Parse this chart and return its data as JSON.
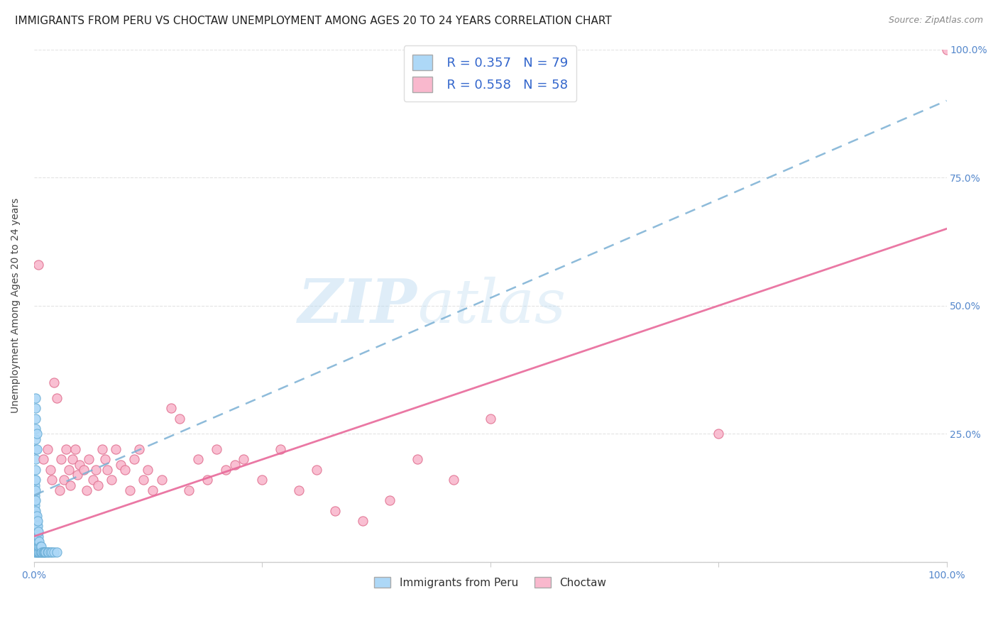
{
  "title": "IMMIGRANTS FROM PERU VS CHOCTAW UNEMPLOYMENT AMONG AGES 20 TO 24 YEARS CORRELATION CHART",
  "source": "Source: ZipAtlas.com",
  "ylabel": "Unemployment Among Ages 20 to 24 years",
  "xlim": [
    0.0,
    1.0
  ],
  "ylim": [
    0.0,
    1.0
  ],
  "background_color": "#ffffff",
  "watermark_text": "ZIP",
  "watermark_text2": "atlas",
  "legend_r1": "R = 0.357",
  "legend_n1": "N = 79",
  "legend_r2": "R = 0.558",
  "legend_n2": "N = 58",
  "series1_color": "#add8f7",
  "series1_edge": "#6aaed6",
  "series2_color": "#f9b8cd",
  "series2_edge": "#e07090",
  "trendline1_color": "#7ab0d4",
  "trendline2_color": "#e8699a",
  "grid_color": "#e0e0e0",
  "title_fontsize": 11,
  "axis_label_fontsize": 10,
  "tick_fontsize": 10,
  "tick_color": "#5588cc",
  "peru_x": [
    0.001,
    0.001,
    0.001,
    0.001,
    0.001,
    0.001,
    0.001,
    0.001,
    0.001,
    0.001,
    0.001,
    0.001,
    0.001,
    0.001,
    0.001,
    0.001,
    0.001,
    0.001,
    0.001,
    0.002,
    0.002,
    0.002,
    0.002,
    0.002,
    0.002,
    0.002,
    0.002,
    0.002,
    0.002,
    0.002,
    0.002,
    0.002,
    0.002,
    0.002,
    0.002,
    0.002,
    0.002,
    0.002,
    0.002,
    0.003,
    0.003,
    0.003,
    0.003,
    0.003,
    0.003,
    0.003,
    0.003,
    0.003,
    0.003,
    0.004,
    0.004,
    0.004,
    0.004,
    0.004,
    0.004,
    0.004,
    0.005,
    0.005,
    0.005,
    0.005,
    0.005,
    0.006,
    0.006,
    0.006,
    0.007,
    0.007,
    0.008,
    0.008,
    0.009,
    0.01,
    0.011,
    0.012,
    0.013,
    0.015,
    0.016,
    0.018,
    0.02,
    0.022,
    0.025
  ],
  "peru_y": [
    0.02,
    0.03,
    0.04,
    0.05,
    0.06,
    0.07,
    0.08,
    0.09,
    0.1,
    0.11,
    0.12,
    0.13,
    0.14,
    0.15,
    0.16,
    0.03,
    0.05,
    0.07,
    0.09,
    0.02,
    0.03,
    0.04,
    0.05,
    0.06,
    0.07,
    0.08,
    0.09,
    0.1,
    0.2,
    0.22,
    0.24,
    0.26,
    0.28,
    0.3,
    0.32,
    0.12,
    0.14,
    0.16,
    0.18,
    0.02,
    0.03,
    0.04,
    0.05,
    0.06,
    0.07,
    0.08,
    0.09,
    0.22,
    0.25,
    0.02,
    0.03,
    0.04,
    0.05,
    0.06,
    0.07,
    0.08,
    0.02,
    0.03,
    0.04,
    0.05,
    0.06,
    0.02,
    0.03,
    0.04,
    0.02,
    0.03,
    0.02,
    0.03,
    0.02,
    0.02,
    0.02,
    0.02,
    0.02,
    0.02,
    0.02,
    0.02,
    0.02,
    0.02,
    0.02
  ],
  "choctaw_x": [
    0.005,
    0.01,
    0.015,
    0.018,
    0.02,
    0.022,
    0.025,
    0.028,
    0.03,
    0.033,
    0.035,
    0.038,
    0.04,
    0.042,
    0.045,
    0.048,
    0.05,
    0.055,
    0.058,
    0.06,
    0.065,
    0.068,
    0.07,
    0.075,
    0.078,
    0.08,
    0.085,
    0.09,
    0.095,
    0.1,
    0.105,
    0.11,
    0.115,
    0.12,
    0.125,
    0.13,
    0.14,
    0.15,
    0.16,
    0.17,
    0.18,
    0.19,
    0.2,
    0.21,
    0.22,
    0.23,
    0.25,
    0.27,
    0.29,
    0.31,
    0.33,
    0.36,
    0.39,
    0.42,
    0.46,
    0.5,
    0.75,
    1.0
  ],
  "choctaw_y": [
    0.58,
    0.2,
    0.22,
    0.18,
    0.16,
    0.35,
    0.32,
    0.14,
    0.2,
    0.16,
    0.22,
    0.18,
    0.15,
    0.2,
    0.22,
    0.17,
    0.19,
    0.18,
    0.14,
    0.2,
    0.16,
    0.18,
    0.15,
    0.22,
    0.2,
    0.18,
    0.16,
    0.22,
    0.19,
    0.18,
    0.14,
    0.2,
    0.22,
    0.16,
    0.18,
    0.14,
    0.16,
    0.3,
    0.28,
    0.14,
    0.2,
    0.16,
    0.22,
    0.18,
    0.19,
    0.2,
    0.16,
    0.22,
    0.14,
    0.18,
    0.1,
    0.08,
    0.12,
    0.2,
    0.16,
    0.28,
    0.25,
    1.0
  ]
}
